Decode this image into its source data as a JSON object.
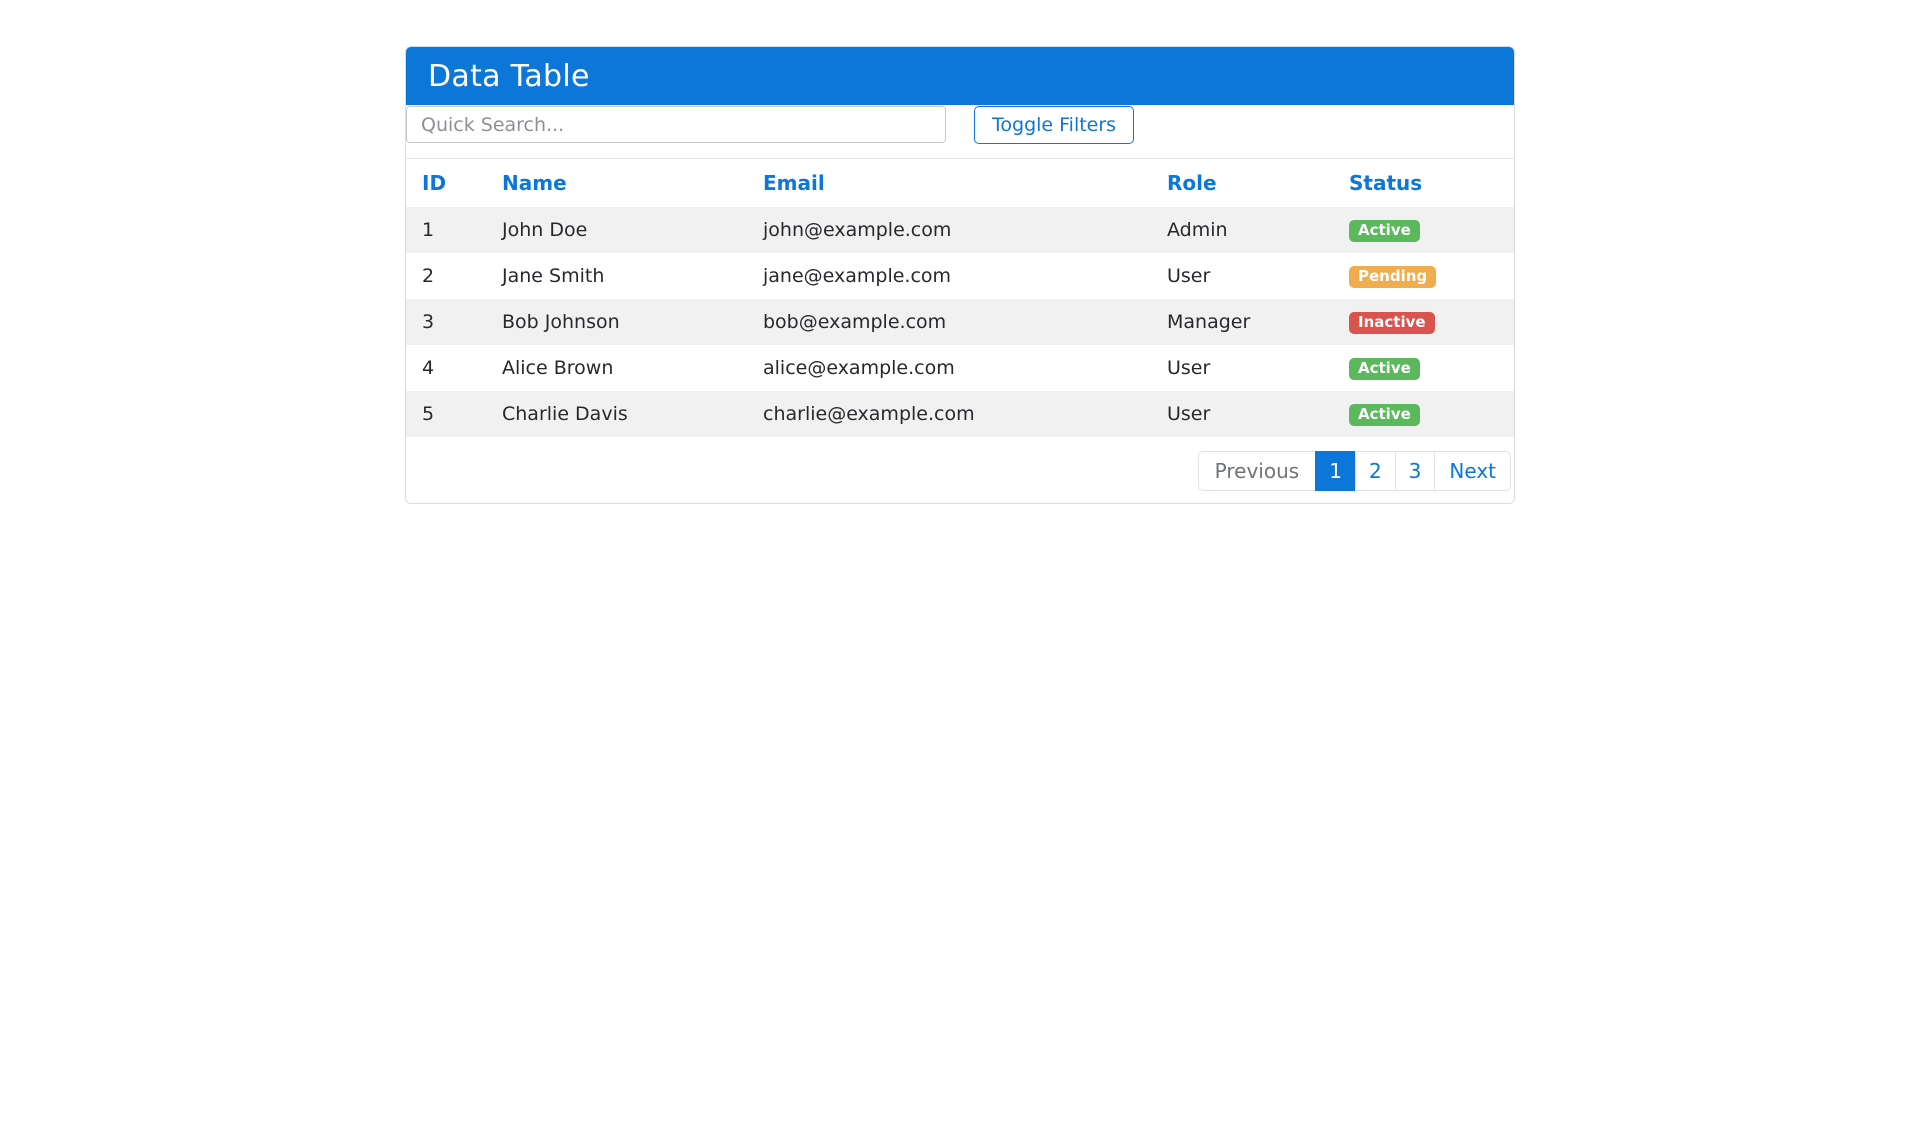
{
  "header": {
    "title": "Data Table"
  },
  "toolbar": {
    "search_placeholder": "Quick Search...",
    "search_value": "",
    "toggle_filters_label": "Toggle Filters"
  },
  "table": {
    "columns": [
      "ID",
      "Name",
      "Email",
      "Role",
      "Status"
    ],
    "rows": [
      {
        "id": "1",
        "name": "John Doe",
        "email": "john@example.com",
        "role": "Admin",
        "status": "Active"
      },
      {
        "id": "2",
        "name": "Jane Smith",
        "email": "jane@example.com",
        "role": "User",
        "status": "Pending"
      },
      {
        "id": "3",
        "name": "Bob Johnson",
        "email": "bob@example.com",
        "role": "Manager",
        "status": "Inactive"
      },
      {
        "id": "4",
        "name": "Alice Brown",
        "email": "alice@example.com",
        "role": "User",
        "status": "Active"
      },
      {
        "id": "5",
        "name": "Charlie Davis",
        "email": "charlie@example.com",
        "role": "User",
        "status": "Active"
      }
    ],
    "status_colors": {
      "Active": "#5cb85c",
      "Pending": "#f0ad4e",
      "Inactive": "#d9534f"
    }
  },
  "pagination": {
    "previous_label": "Previous",
    "pages": [
      "1",
      "2",
      "3"
    ],
    "active_page": "1",
    "next_label": "Next"
  },
  "colors": {
    "primary": "#0d76d9",
    "stripe": "#f1f1f1",
    "border": "#dee2e6",
    "disabled_text": "#6f7478"
  }
}
